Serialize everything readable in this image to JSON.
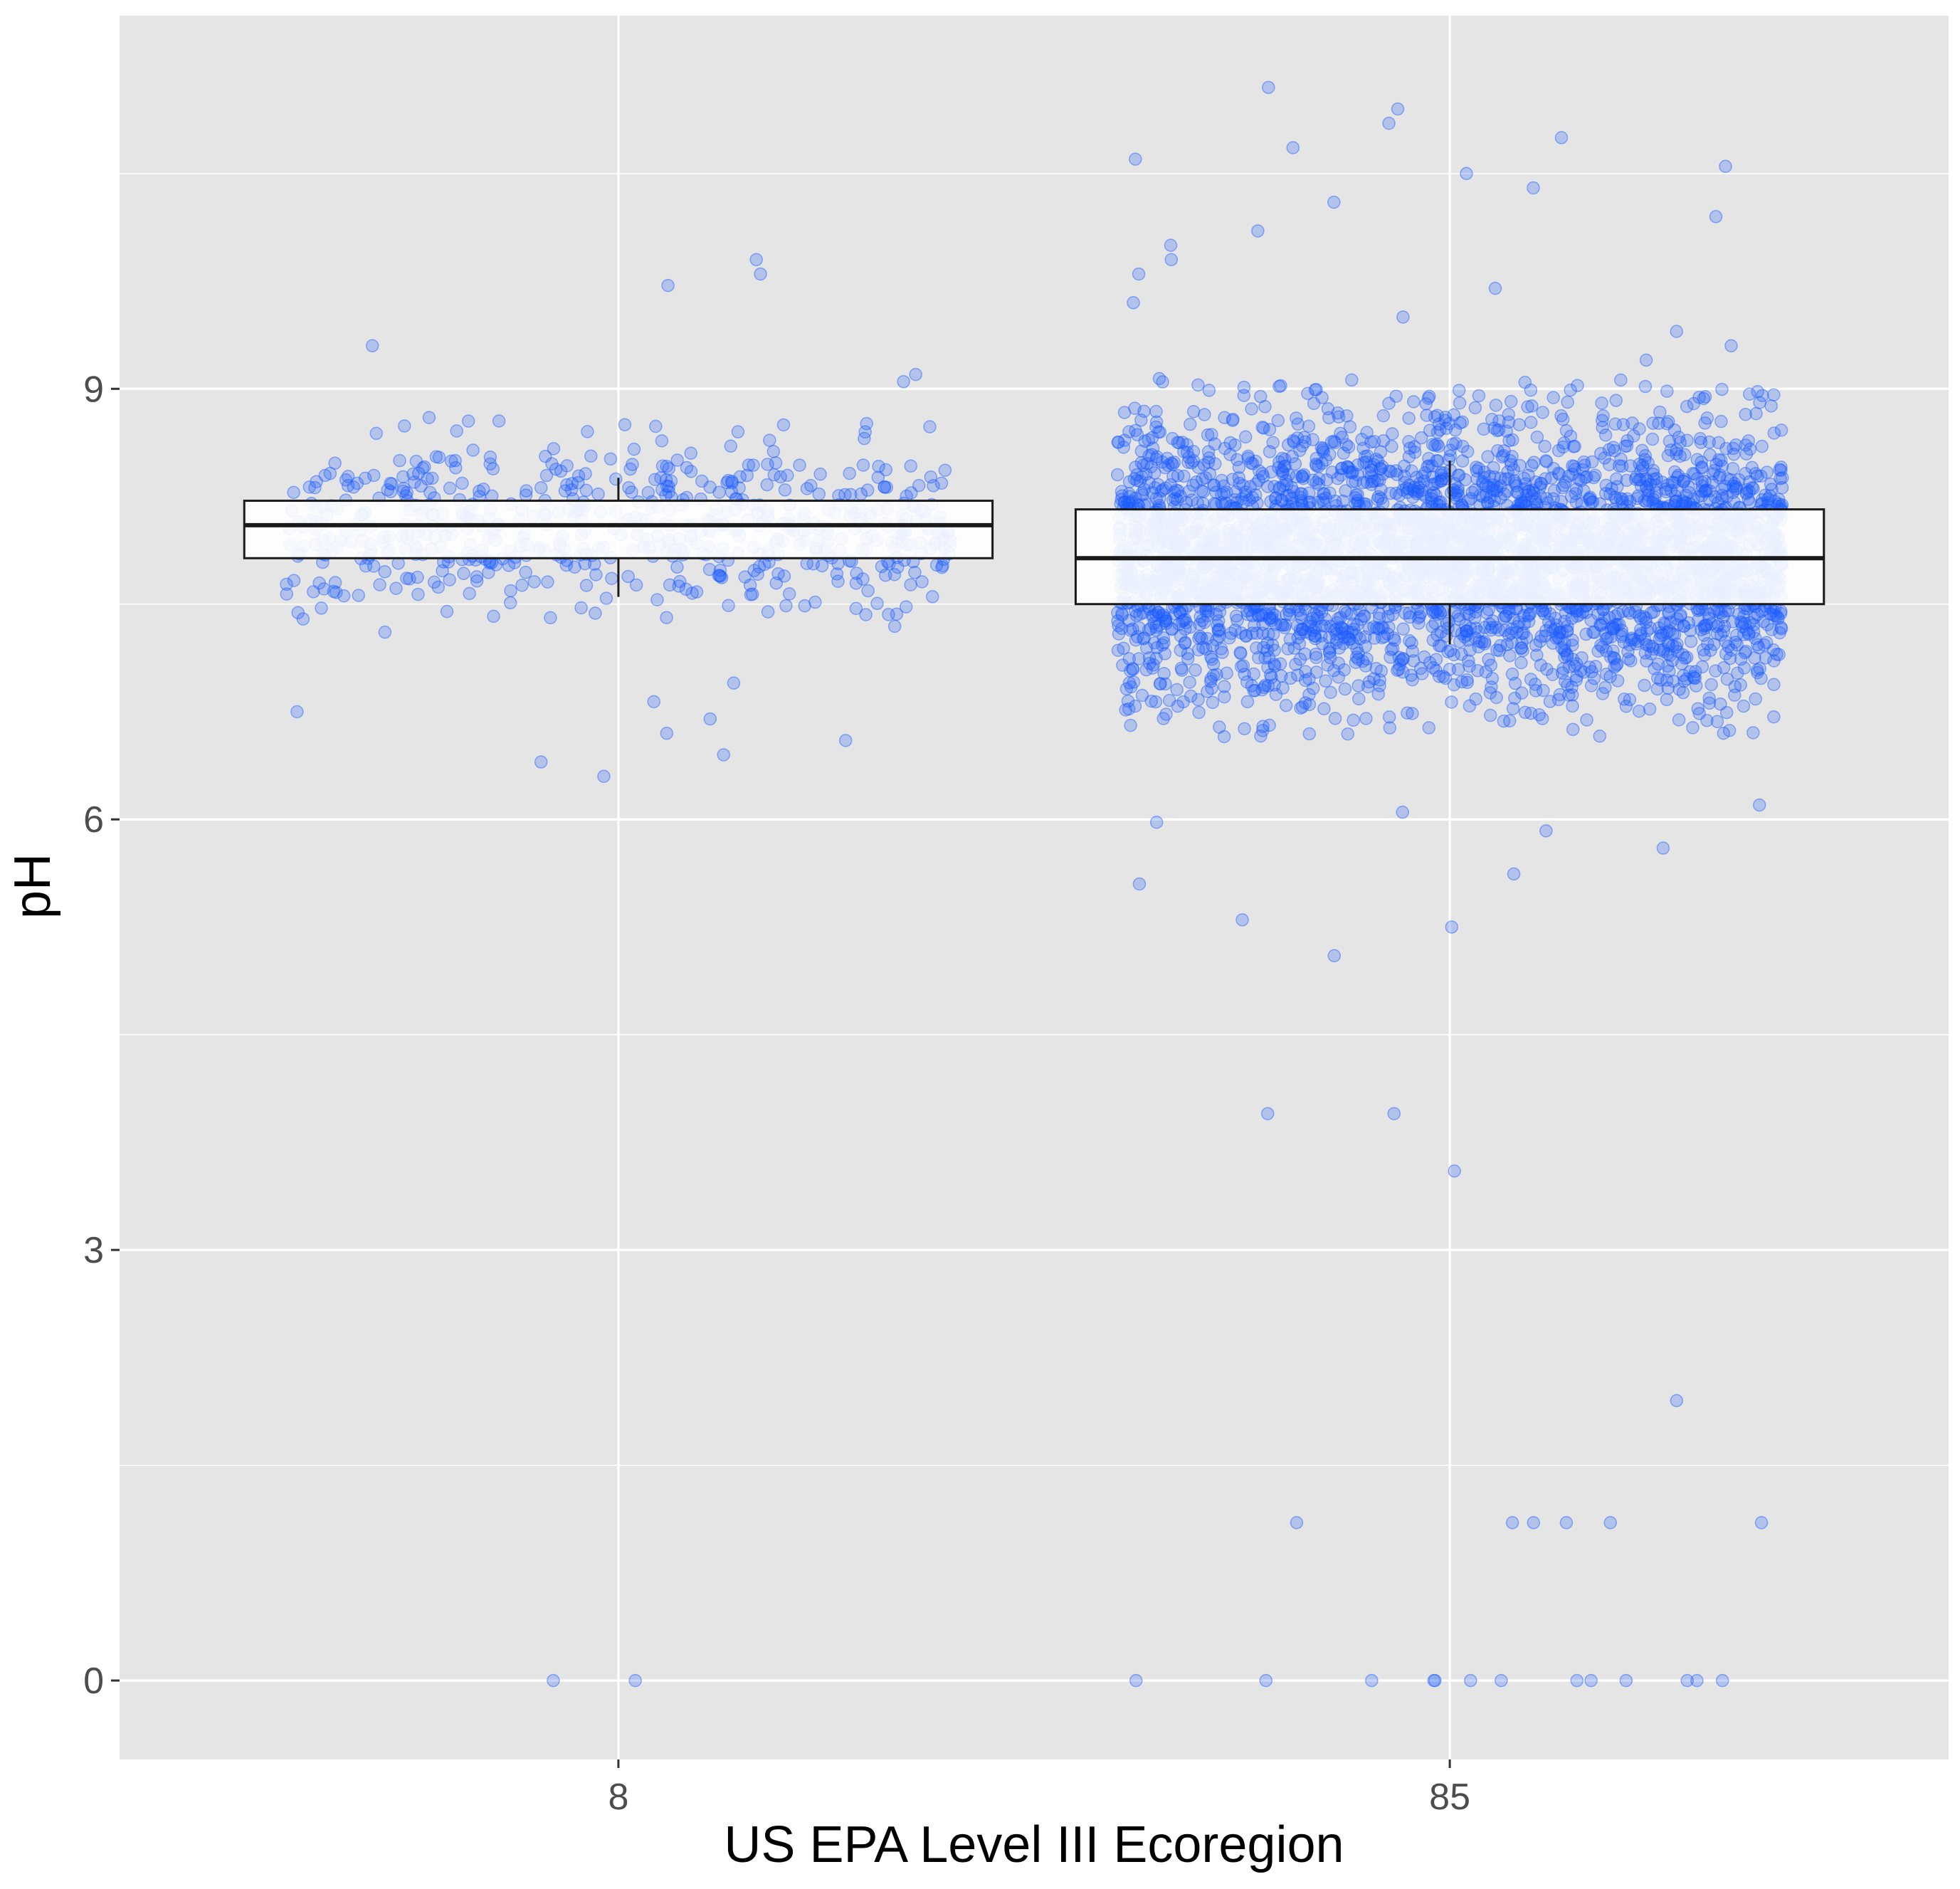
{
  "chart_data": {
    "type": "box",
    "xlabel": "US EPA Level III Ecoregion",
    "ylabel": "pH",
    "categories": [
      "8",
      "85"
    ],
    "ylim": [
      -0.55,
      11.6
    ],
    "y_ticks": [
      0,
      3,
      6,
      9
    ],
    "y_tick_labels": [
      "0",
      "3",
      "6",
      "9"
    ],
    "grid": true,
    "point_color": "#1a5cff",
    "panel_background": "#e5e5e5",
    "boxes": [
      {
        "category": "8",
        "whisker_low": 7.55,
        "q1": 7.82,
        "median": 8.05,
        "q3": 8.22,
        "whisker_high": 8.38
      },
      {
        "category": "85",
        "whisker_low": 7.22,
        "q1": 7.5,
        "median": 7.82,
        "q3": 8.16,
        "whisker_high": 8.5
      }
    ],
    "outliers": [
      {
        "category": "8",
        "values": [
          9.72,
          9.1,
          9.05,
          8.8,
          8.7,
          6.95,
          6.82,
          6.7,
          6.55,
          0.0,
          0.0,
          6.4,
          6.3,
          6.45,
          9.9,
          9.8,
          9.3,
          8.75,
          6.6,
          6.75
        ]
      },
      {
        "category": "85",
        "values": [
          11.1,
          10.95,
          10.85,
          10.75,
          10.68,
          10.6,
          10.55,
          10.5,
          10.4,
          10.3,
          10.2,
          10.1,
          10.0,
          9.9,
          9.8,
          9.7,
          9.6,
          9.5,
          9.4,
          9.3,
          9.2,
          6.1,
          6.05,
          5.98,
          5.92,
          5.8,
          5.62,
          5.55,
          5.3,
          5.25,
          5.05,
          3.95,
          3.95,
          3.55,
          1.95,
          1.1,
          1.1,
          1.1,
          1.1,
          1.1,
          1.1,
          0.0,
          0.0,
          0.0,
          0.0,
          0.0,
          0.0,
          0.0,
          0.0,
          0.0,
          0.0,
          0.0,
          0.0,
          0.0
        ]
      }
    ]
  }
}
